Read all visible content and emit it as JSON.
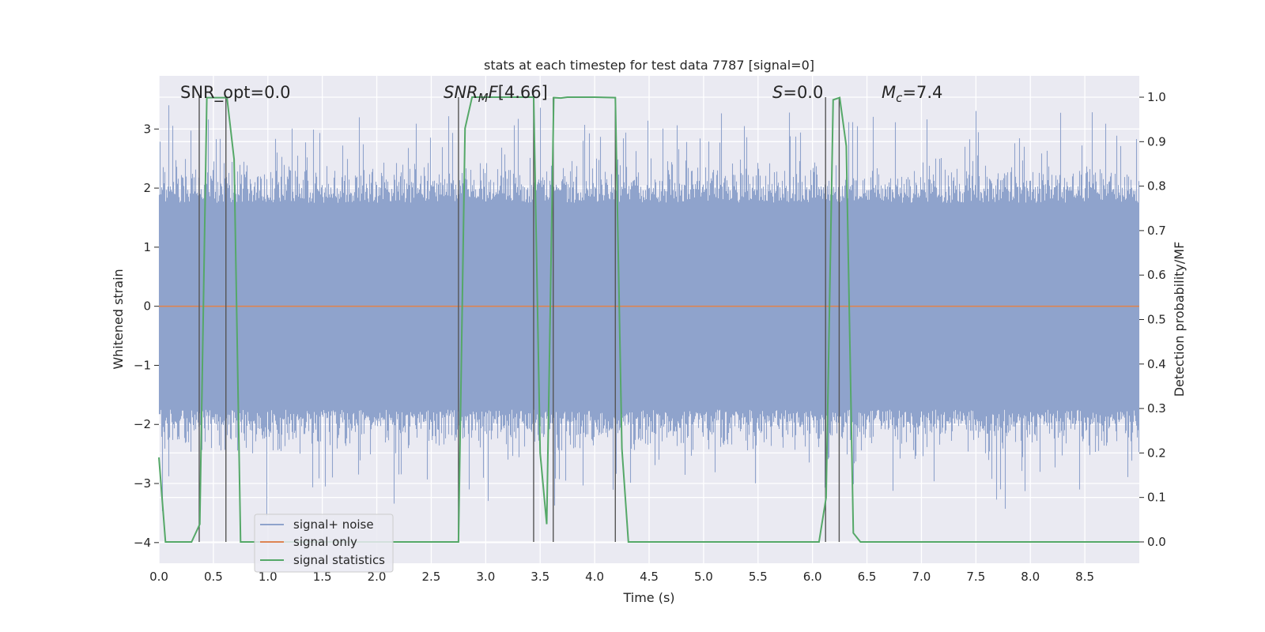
{
  "chart_data": {
    "type": "line",
    "title": "stats at each timestep for test data 7787 [signal=0]",
    "xlabel": "Time (s)",
    "ylabel": "Whitened strain",
    "y2label": "Detection probability/MF",
    "xlim": [
      0.0,
      9.0
    ],
    "ylim": [
      -4.35,
      3.9
    ],
    "y2lim": [
      -0.048,
      1.048
    ],
    "x_ticks": [
      "0.0",
      "0.5",
      "1.0",
      "1.5",
      "2.0",
      "2.5",
      "3.0",
      "3.5",
      "4.0",
      "4.5",
      "5.0",
      "5.5",
      "6.0",
      "6.5",
      "7.0",
      "7.5",
      "8.0",
      "8.5"
    ],
    "y_ticks": [
      "−4",
      "−3",
      "−2",
      "−1",
      "0",
      "1",
      "2",
      "3"
    ],
    "y2_ticks": [
      "0.0",
      "0.1",
      "0.2",
      "0.3",
      "0.4",
      "0.5",
      "0.6",
      "0.7",
      "0.8",
      "0.9",
      "1.0"
    ],
    "grid": true,
    "legend_position": "lower-left",
    "annotations": {
      "snr_opt": "SNR_opt=0.0",
      "snr_mf": "[4.66]",
      "s_val": "=0.0",
      "mc_val": "=7.4"
    },
    "series": [
      {
        "name": "signal+ noise",
        "color": "#8fa3cc",
        "kind": "noise",
        "duration": 9.0,
        "sample_rate": 2048,
        "band_low": -1.75,
        "band_high": 1.75,
        "peaks_max": [
          3.55,
          3.6
        ],
        "peaks_min": [
          -3.6,
          -4.0
        ]
      },
      {
        "name": "signal only",
        "color": "#dd8452",
        "x": [
          0.0,
          9.0
        ],
        "y": [
          0.0,
          0.0
        ]
      },
      {
        "name": "signal statistics",
        "color": "#55a868",
        "axis": "right",
        "x": [
          0.0,
          0.06,
          0.12,
          0.3,
          0.375,
          0.44,
          0.625,
          0.69,
          0.75,
          2.75,
          2.81,
          2.875,
          3.44,
          3.5,
          3.56,
          3.625,
          3.69,
          3.75,
          4.0,
          4.19,
          4.25,
          4.31,
          6.06,
          6.125,
          6.19,
          6.25,
          6.31,
          6.375,
          6.44,
          9.0
        ],
        "y": [
          0.19,
          0.0,
          0.0,
          0.0,
          0.04,
          0.999,
          0.999,
          0.86,
          0.0,
          0.0,
          0.93,
          1.0,
          1.0,
          0.2,
          0.04,
          0.999,
          0.998,
          1.0,
          1.0,
          0.999,
          0.21,
          0.0,
          0.0,
          0.1,
          0.994,
          0.999,
          0.89,
          0.02,
          0.0,
          0.0
        ]
      }
    ],
    "vlines": [
      0.37,
      0.615,
      2.75,
      3.44,
      3.62,
      4.19,
      6.12,
      6.245
    ]
  }
}
